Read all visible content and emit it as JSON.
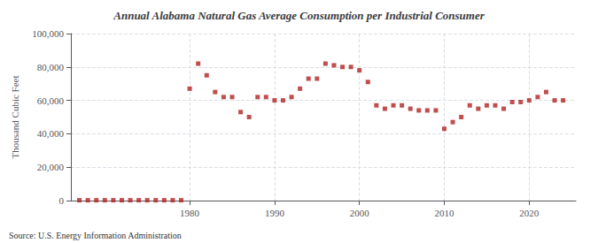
{
  "chart_data": {
    "type": "scatter",
    "title": "Annual Alabama Natural Gas Average Consumption per Industrial Consumer",
    "ylabel": "Thousand Cubic Feet",
    "annotations": [
      "Source: U.S. Energy Information Administration"
    ],
    "x": [
      1967,
      1968,
      1969,
      1970,
      1971,
      1972,
      1973,
      1974,
      1975,
      1976,
      1977,
      1978,
      1979,
      1980,
      1981,
      1982,
      1983,
      1984,
      1985,
      1986,
      1987,
      1988,
      1989,
      1990,
      1991,
      1992,
      1993,
      1994,
      1995,
      1996,
      1997,
      1998,
      1999,
      2000,
      2001,
      2002,
      2003,
      2004,
      2005,
      2006,
      2007,
      2008,
      2009,
      2010,
      2011,
      2012,
      2013,
      2014,
      2015,
      2016,
      2017,
      2018,
      2019,
      2020,
      2021,
      2022,
      2023,
      2024
    ],
    "values": [
      200,
      200,
      200,
      200,
      200,
      200,
      200,
      200,
      200,
      200,
      200,
      200,
      200,
      67000,
      82000,
      75000,
      65000,
      62000,
      62000,
      53000,
      50000,
      62000,
      62000,
      60000,
      60000,
      62000,
      67000,
      73000,
      73000,
      82000,
      81000,
      80000,
      80000,
      78000,
      71000,
      57000,
      55000,
      57000,
      57000,
      55000,
      54000,
      54000,
      54000,
      43000,
      47000,
      50000,
      57000,
      55000,
      57000,
      57000,
      55000,
      59000,
      59000,
      60000,
      62000,
      65000,
      60000,
      60000
    ],
    "color": "#b22222",
    "marker": "square",
    "xlim": [
      1966,
      2025.5
    ],
    "xticks": [
      1980,
      1990,
      2000,
      2010,
      2020
    ],
    "ylim": [
      0,
      100000
    ],
    "yticks": [
      0,
      {
        "value": 20000,
        "label": "20,000"
      },
      {
        "value": 40000,
        "label": "40,000"
      },
      {
        "value": 60000,
        "label": "60,000"
      },
      {
        "value": 80000,
        "label": "80,000"
      },
      {
        "value": 100000,
        "label": "100,000"
      }
    ],
    "grid": true
  }
}
